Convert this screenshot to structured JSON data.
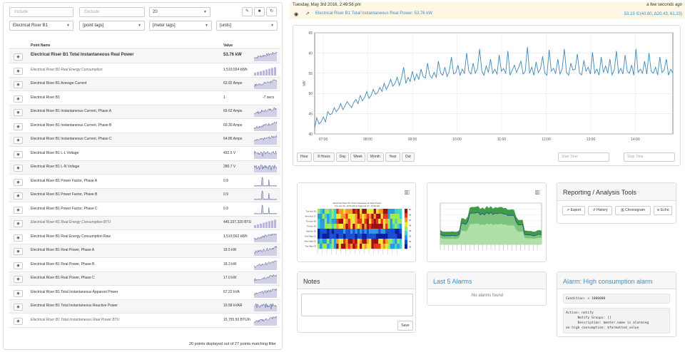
{
  "filters": {
    "include_placeholder": "Include",
    "exclude_placeholder": "Exclude",
    "count_value": "20",
    "equipment": "Electrical Riser B1",
    "point_tags": "[point tags]",
    "meter_tags": "[meter tags]",
    "units": "[units]"
  },
  "toolbar": {
    "brush_icon": "brush-icon",
    "stop_icon": "stop-icon",
    "refresh_icon": "refresh-icon"
  },
  "table": {
    "col_name": "Point Name",
    "col_value": "Value",
    "rows": [
      {
        "name": "Electrical Riser B1 Total Instantaneous Real Power",
        "value": "53.76 kW",
        "style": "bold",
        "spark": "line"
      },
      {
        "name": "Electrical Riser B1 Real Energy Consumption",
        "value": "1,519,554 kWh",
        "style": "italic",
        "spark": "bars"
      },
      {
        "name": "Electrical Riser B1 Average Current",
        "value": "63.92 Amps",
        "style": "normal",
        "spark": "line"
      },
      {
        "name": "Electrical Riser B1",
        "value": "1",
        "extra": "-7 secs",
        "style": "normal",
        "spark": "none"
      },
      {
        "name": "Electrical Riser B1 Instantaneous Current, Phase A",
        "value": "69.62 Amps",
        "style": "normal",
        "spark": "line"
      },
      {
        "name": "Electrical Riser B1 Instantaneous Current, Phase B",
        "value": "69.30 Amps",
        "style": "normal",
        "spark": "line"
      },
      {
        "name": "Electrical Riser B1 Instantaneous Current, Phase C",
        "value": "64.86 Amps",
        "style": "normal",
        "spark": "line"
      },
      {
        "name": "Electrical Riser B1 L-L Voltage",
        "value": "492.5 V",
        "style": "normal",
        "spark": "flat"
      },
      {
        "name": "Electrical Riser B1 L-N Voltage",
        "value": "280.7 V",
        "style": "normal",
        "spark": "flat"
      },
      {
        "name": "Electrical Riser B1 Power Factor, Phase A",
        "value": "0.9",
        "style": "normal",
        "spark": "spike"
      },
      {
        "name": "Electrical Riser B1 Power Factor, Phase B",
        "value": "0.9",
        "style": "normal",
        "spark": "spike"
      },
      {
        "name": "Electrical Riser B1 Power Factor, Phase C",
        "value": "0.9",
        "style": "normal",
        "spark": "spike"
      },
      {
        "name": "Electrical Riser B1 Real Energy Consumption BTU",
        "value": "445,337,320 BTU",
        "style": "italic",
        "spark": "bars"
      },
      {
        "name": "Electrical Riser B1 Real Energy Consumption Raw",
        "value": "1,519,562 kWh",
        "style": "normal",
        "spark": "line"
      },
      {
        "name": "Electrical Riser B1 Real Power, Phase A",
        "value": "18.5 kW",
        "style": "normal",
        "spark": "line"
      },
      {
        "name": "Electrical Riser B1 Real Power, Phase B",
        "value": "18.3 kW",
        "style": "normal",
        "spark": "line"
      },
      {
        "name": "Electrical Riser B1 Real Power, Phase C",
        "value": "17.0 kW",
        "style": "normal",
        "spark": "line"
      },
      {
        "name": "Electrical Riser B1 Total Instantaneous Apparent Power",
        "value": "57.22 kVA",
        "style": "normal",
        "spark": "line"
      },
      {
        "name": "Electrical Riser B1 Total Instantaneous Reactive Power",
        "value": "19.58 kVAR",
        "style": "normal",
        "spark": "flat"
      },
      {
        "name": "Electrical Riser B1 Total Instantaneous Real Power BTU",
        "value": "15,755.50 BTU/h",
        "style": "italic",
        "spark": "line"
      }
    ],
    "footer": "20 points displayed out of 27 points matching filter"
  },
  "header": {
    "date": "Tuesday, May 3rd 2016, 2:49:56 pm",
    "ago": "a few seconds ago",
    "point_link": "Electrical Riser B1 Total Instantaneous Real Power: 53.76 kW",
    "stats": "53.19 ∈(40.80, Δ20.43, 61.23)"
  },
  "chart_data": {
    "type": "line",
    "ylabel": "kW",
    "ylim": [
      40,
      65
    ],
    "yticks": [
      "65",
      "60",
      "55",
      "50",
      "45",
      "40"
    ],
    "xticks": [
      "07:00",
      "08:00",
      "09:00",
      "10:00",
      "11:00",
      "12:00",
      "13:00",
      "14:00"
    ],
    "series": [
      {
        "values": [
          41.5,
          44.0,
          42.5,
          43.0,
          44.2,
          43.0,
          45.5,
          44.8,
          45.0,
          46.5,
          45.5,
          46.2,
          47.5,
          46.0,
          47.0,
          48.0,
          47.2,
          46.5,
          47.8,
          48.5,
          47.5,
          49.5,
          48.2,
          49.0,
          50.5,
          48.8,
          49.5,
          51.0,
          49.8,
          50.2,
          51.5,
          50.5,
          52.5,
          51.0,
          52.0,
          53.5,
          51.8,
          52.5,
          54.0,
          52.0,
          53.8,
          56.5,
          52.5,
          54.0,
          53.0,
          55.5,
          53.2,
          54.8,
          53.5,
          56.0,
          54.2,
          53.8,
          57.5,
          54.5,
          53.8,
          55.2,
          54.0,
          58.0,
          55.0,
          54.5,
          56.5,
          54.2,
          55.5,
          59.0,
          54.8,
          55.2,
          57.0,
          54.5,
          56.0,
          55.0,
          60.0,
          55.5,
          54.8,
          57.5,
          55.0,
          56.2,
          61.0,
          55.5,
          54.5,
          56.8,
          55.2,
          58.5,
          55.0,
          56.0,
          54.8,
          59.5,
          55.5,
          56.2,
          55.0,
          60.5,
          54.5,
          55.8,
          57.0,
          55.2,
          56.5,
          58.0,
          54.8,
          55.5,
          61.5,
          55.0,
          56.5,
          54.5,
          57.8,
          55.2,
          56.0,
          59.2,
          55.0,
          54.5,
          60.8,
          55.5,
          56.2,
          55.0,
          58.5,
          54.8,
          56.0,
          61.0,
          55.2,
          54.5,
          57.5,
          55.8,
          56.0,
          59.8,
          55.0,
          54.6,
          58.2,
          55.5,
          56.5,
          54.8,
          60.2,
          55.0,
          56.0,
          54.5,
          59.0,
          55.2,
          56.8,
          55.0,
          58.5,
          54.6,
          55.8,
          60.5,
          55.0,
          56.2,
          54.8,
          59.5,
          55.5,
          55.0,
          57.0,
          54.5,
          61.0,
          55.2,
          56.0,
          55.0,
          58.0,
          54.8,
          60.0,
          55.5,
          55.0,
          56.5,
          54.6,
          59.0,
          55.2,
          55.8,
          58.5,
          54.5,
          56.0,
          55.0
        ]
      }
    ]
  },
  "range_buttons": [
    "Hour",
    "8 Hours",
    "Day",
    "Week",
    "Month",
    "Year",
    "Out"
  ],
  "time_inputs": {
    "start_placeholder": "Start Time",
    "stop_placeholder": "Stop Time"
  },
  "mini_chart_icon": "bar-chart-icon",
  "heatmap": {
    "title": "Electrical Riser B1 Total Instantaneous Real Power",
    "subtitle": "Tue Apr 26, 12:00 AM to Wed Apr 27, 12:00 AM",
    "rows": [
      "Tue Apr 26",
      "Wed Apr 27",
      "Thu Apr 28",
      "Fri Apr 29",
      "Sat Apr 30",
      "Sun May 01",
      "Mon May 02",
      "Tue May 03"
    ],
    "scale": [
      "60",
      "55",
      "50",
      "45",
      "40",
      "35",
      "30",
      "25"
    ]
  },
  "tools": {
    "title": "Reporting / Analysis Tools",
    "buttons": [
      {
        "icon": "export-icon",
        "label": "Export"
      },
      {
        "icon": "history-icon",
        "label": "History"
      },
      {
        "icon": "chronogram-icon",
        "label": "Chronogram"
      },
      {
        "icon": "echo-icon",
        "label": "Echo"
      }
    ]
  },
  "notes": {
    "title": "Notes",
    "save_label": "Save"
  },
  "alarms": {
    "title": "Last 5 Alarms",
    "empty": "No alarms found"
  },
  "alarm_detail": {
    "title": "Alarm: High consumption alarm",
    "condition": "Condition: > 1000000",
    "action": "Action: notify\n      Notify Groups: []\n      Description: $meter.name is alarming\non high consumption: $formatted_value"
  }
}
